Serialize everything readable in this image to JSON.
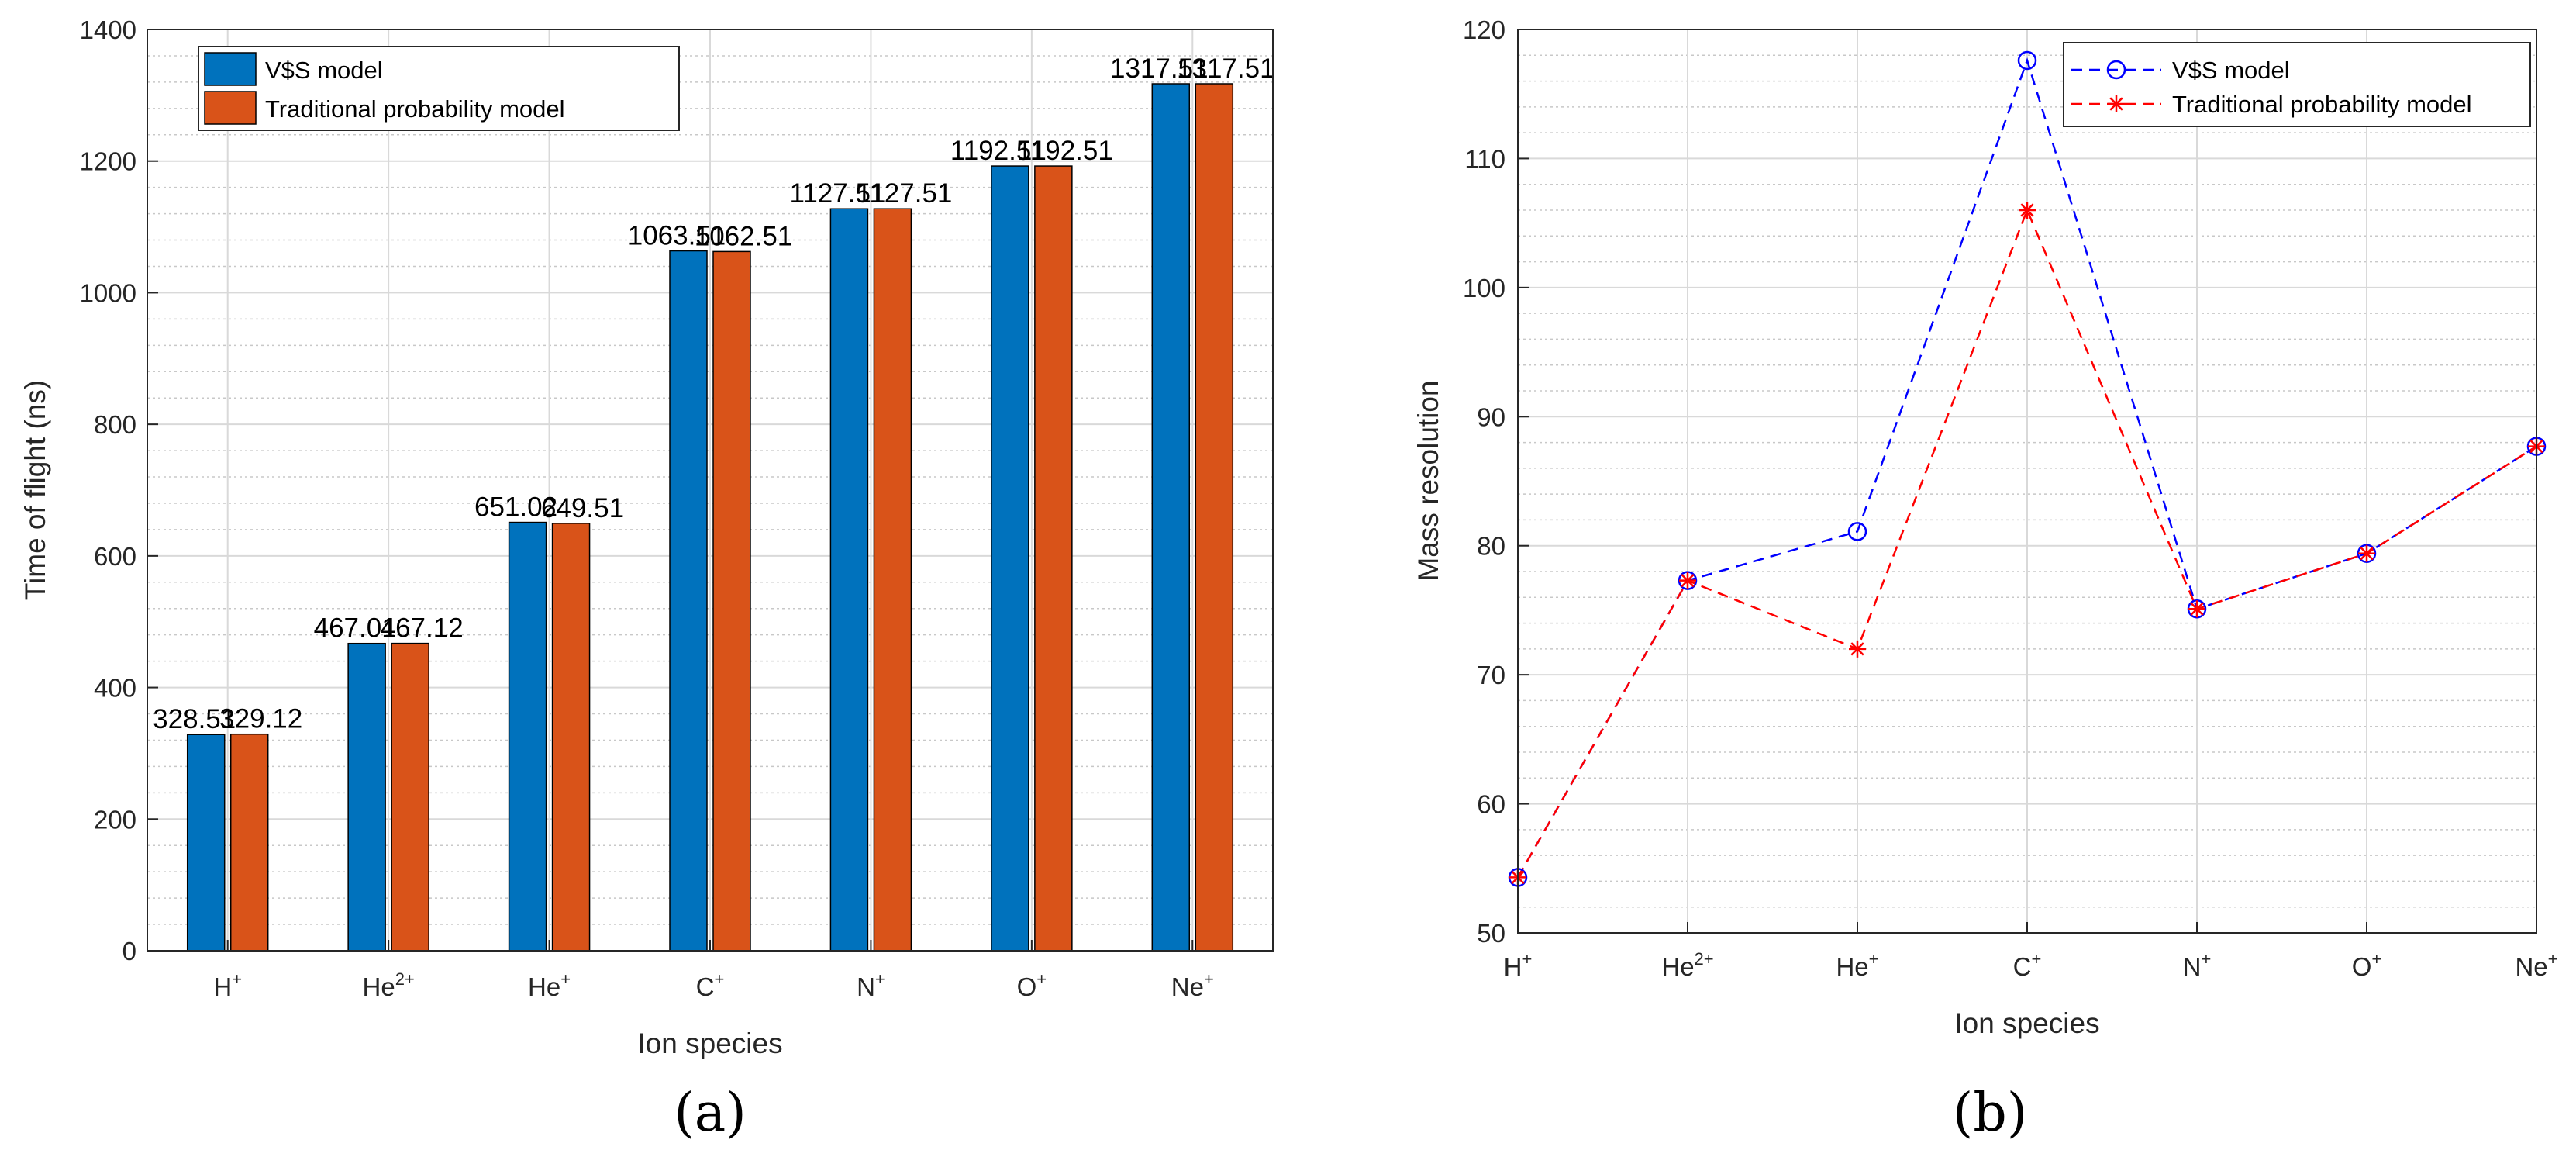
{
  "chart_data": [
    {
      "type": "bar",
      "caption": "(a)",
      "categories": [
        {
          "base": "H",
          "sup": "+"
        },
        {
          "base": "He",
          "sup": "2+"
        },
        {
          "base": "He",
          "sup": "+"
        },
        {
          "base": "C",
          "sup": "+"
        },
        {
          "base": "N",
          "sup": "+"
        },
        {
          "base": "O",
          "sup": "+"
        },
        {
          "base": "Ne",
          "sup": "+"
        }
      ],
      "series": [
        {
          "name": "V$S model",
          "color": "#0072bd",
          "values": [
            328.51,
            467.01,
            651.02,
            1063.51,
            1127.51,
            1192.51,
            1317.51
          ],
          "labels": [
            "328.51",
            "467.01",
            "651.02",
            "1063.51",
            "1127.51",
            "1192.51",
            "1317.51"
          ]
        },
        {
          "name": "Traditional probability model",
          "color": "#d95319",
          "values": [
            329.12,
            467.12,
            649.51,
            1062.51,
            1127.51,
            1192.51,
            1317.51
          ],
          "labels": [
            "329.12",
            "467.12",
            "649.51",
            "1062.51",
            "1127.51",
            "1192.51",
            "1317.51"
          ]
        }
      ],
      "xlabel": "Ion species",
      "ylabel": "Time of flight (ns)",
      "ylim": [
        0,
        1400
      ],
      "yticks": [
        "0",
        "200",
        "400",
        "600",
        "800",
        "1000",
        "1200",
        "1400"
      ],
      "grid": true,
      "legend_position": "top-left"
    },
    {
      "type": "line",
      "caption": "(b)",
      "categories": [
        {
          "base": "H",
          "sup": "+"
        },
        {
          "base": "He",
          "sup": "2+"
        },
        {
          "base": "He",
          "sup": "+"
        },
        {
          "base": "C",
          "sup": "+"
        },
        {
          "base": "N",
          "sup": "+"
        },
        {
          "base": "O",
          "sup": "+"
        },
        {
          "base": "Ne",
          "sup": "+"
        }
      ],
      "series": [
        {
          "name": "V$S model",
          "color": "#0000ff",
          "marker": "circle",
          "line": "dashed",
          "values": [
            54.3,
            77.3,
            81.1,
            117.6,
            75.1,
            79.4,
            87.7
          ]
        },
        {
          "name": "Traditional probability model",
          "color": "#ff0000",
          "marker": "asterisk",
          "line": "dashed",
          "values": [
            54.3,
            77.3,
            72.0,
            106.0,
            75.1,
            79.4,
            87.7
          ]
        }
      ],
      "xlabel": "Ion species",
      "ylabel": "Mass resolution",
      "ylim": [
        50,
        120
      ],
      "yticks": [
        "50",
        "60",
        "70",
        "80",
        "90",
        "100",
        "110",
        "120"
      ],
      "grid": true,
      "legend_position": "top-right"
    }
  ]
}
